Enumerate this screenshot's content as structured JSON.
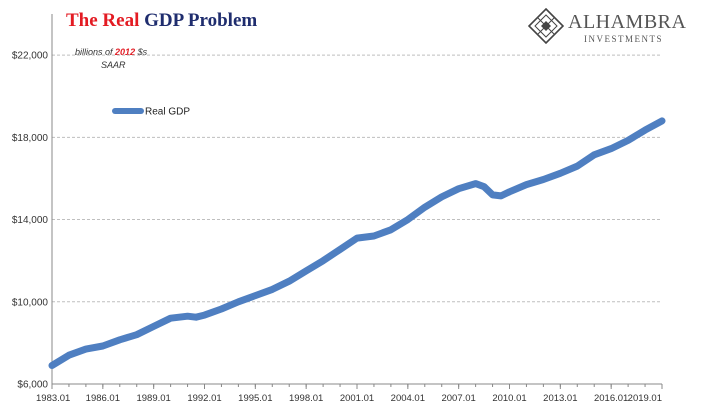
{
  "header": {
    "title_part1": "The Real",
    "title_part2": "GDP Problem",
    "subtitle_prefix": "billions of",
    "subtitle_year": "2012",
    "subtitle_suffix": "$s",
    "subtitle_line2": "SAAR"
  },
  "logo": {
    "name": "ALHAMBRA",
    "sub": "INVESTMENTS",
    "icon": "diamond-lattice-icon"
  },
  "colors": {
    "series": "#4f7fc1",
    "title_red": "#e31b23",
    "title_blue": "#1f2d6e",
    "grid": "#bfbfbf"
  },
  "chart_data": {
    "type": "line",
    "legend_position": "top-left",
    "grid": true,
    "ylim": [
      6000,
      24000
    ],
    "yticks": [
      6000,
      10000,
      14000,
      18000,
      22000
    ],
    "ytick_labels": [
      "$6,000",
      "$10,000",
      "$14,000",
      "$18,000",
      "$22,000"
    ],
    "xlim": [
      1983.0,
      2019.0
    ],
    "xticks": [
      1983,
      1986,
      1989,
      1992,
      1995,
      1998,
      2001,
      2004,
      2007,
      2010,
      2013,
      2016,
      2019
    ],
    "xtick_labels": [
      "1983.01",
      "1986.01",
      "1989.01",
      "1992.01",
      "1995.01",
      "1998.01",
      "2001.01",
      "2004.01",
      "2007.01",
      "2010.01",
      "2013.01",
      "2016.01",
      "2019.01"
    ],
    "series": [
      {
        "name": "Real GDP",
        "points": [
          [
            1983.0,
            6900
          ],
          [
            1984.0,
            7400
          ],
          [
            1985.0,
            7700
          ],
          [
            1986.0,
            7850
          ],
          [
            1987.0,
            8150
          ],
          [
            1988.0,
            8400
          ],
          [
            1989.0,
            8800
          ],
          [
            1990.0,
            9200
          ],
          [
            1991.0,
            9300
          ],
          [
            1991.5,
            9250
          ],
          [
            1992.0,
            9350
          ],
          [
            1993.0,
            9650
          ],
          [
            1994.0,
            10000
          ],
          [
            1995.0,
            10300
          ],
          [
            1996.0,
            10600
          ],
          [
            1997.0,
            11000
          ],
          [
            1998.0,
            11500
          ],
          [
            1999.0,
            12000
          ],
          [
            2000.0,
            12550
          ],
          [
            2001.0,
            13100
          ],
          [
            2002.0,
            13200
          ],
          [
            2003.0,
            13500
          ],
          [
            2004.0,
            14000
          ],
          [
            2005.0,
            14600
          ],
          [
            2006.0,
            15100
          ],
          [
            2007.0,
            15500
          ],
          [
            2008.0,
            15750
          ],
          [
            2008.5,
            15600
          ],
          [
            2009.0,
            15200
          ],
          [
            2009.5,
            15150
          ],
          [
            2010.0,
            15350
          ],
          [
            2011.0,
            15700
          ],
          [
            2012.0,
            15950
          ],
          [
            2013.0,
            16250
          ],
          [
            2014.0,
            16600
          ],
          [
            2015.0,
            17150
          ],
          [
            2016.0,
            17450
          ],
          [
            2017.0,
            17850
          ],
          [
            2018.0,
            18350
          ],
          [
            2019.0,
            18800
          ]
        ]
      }
    ]
  }
}
